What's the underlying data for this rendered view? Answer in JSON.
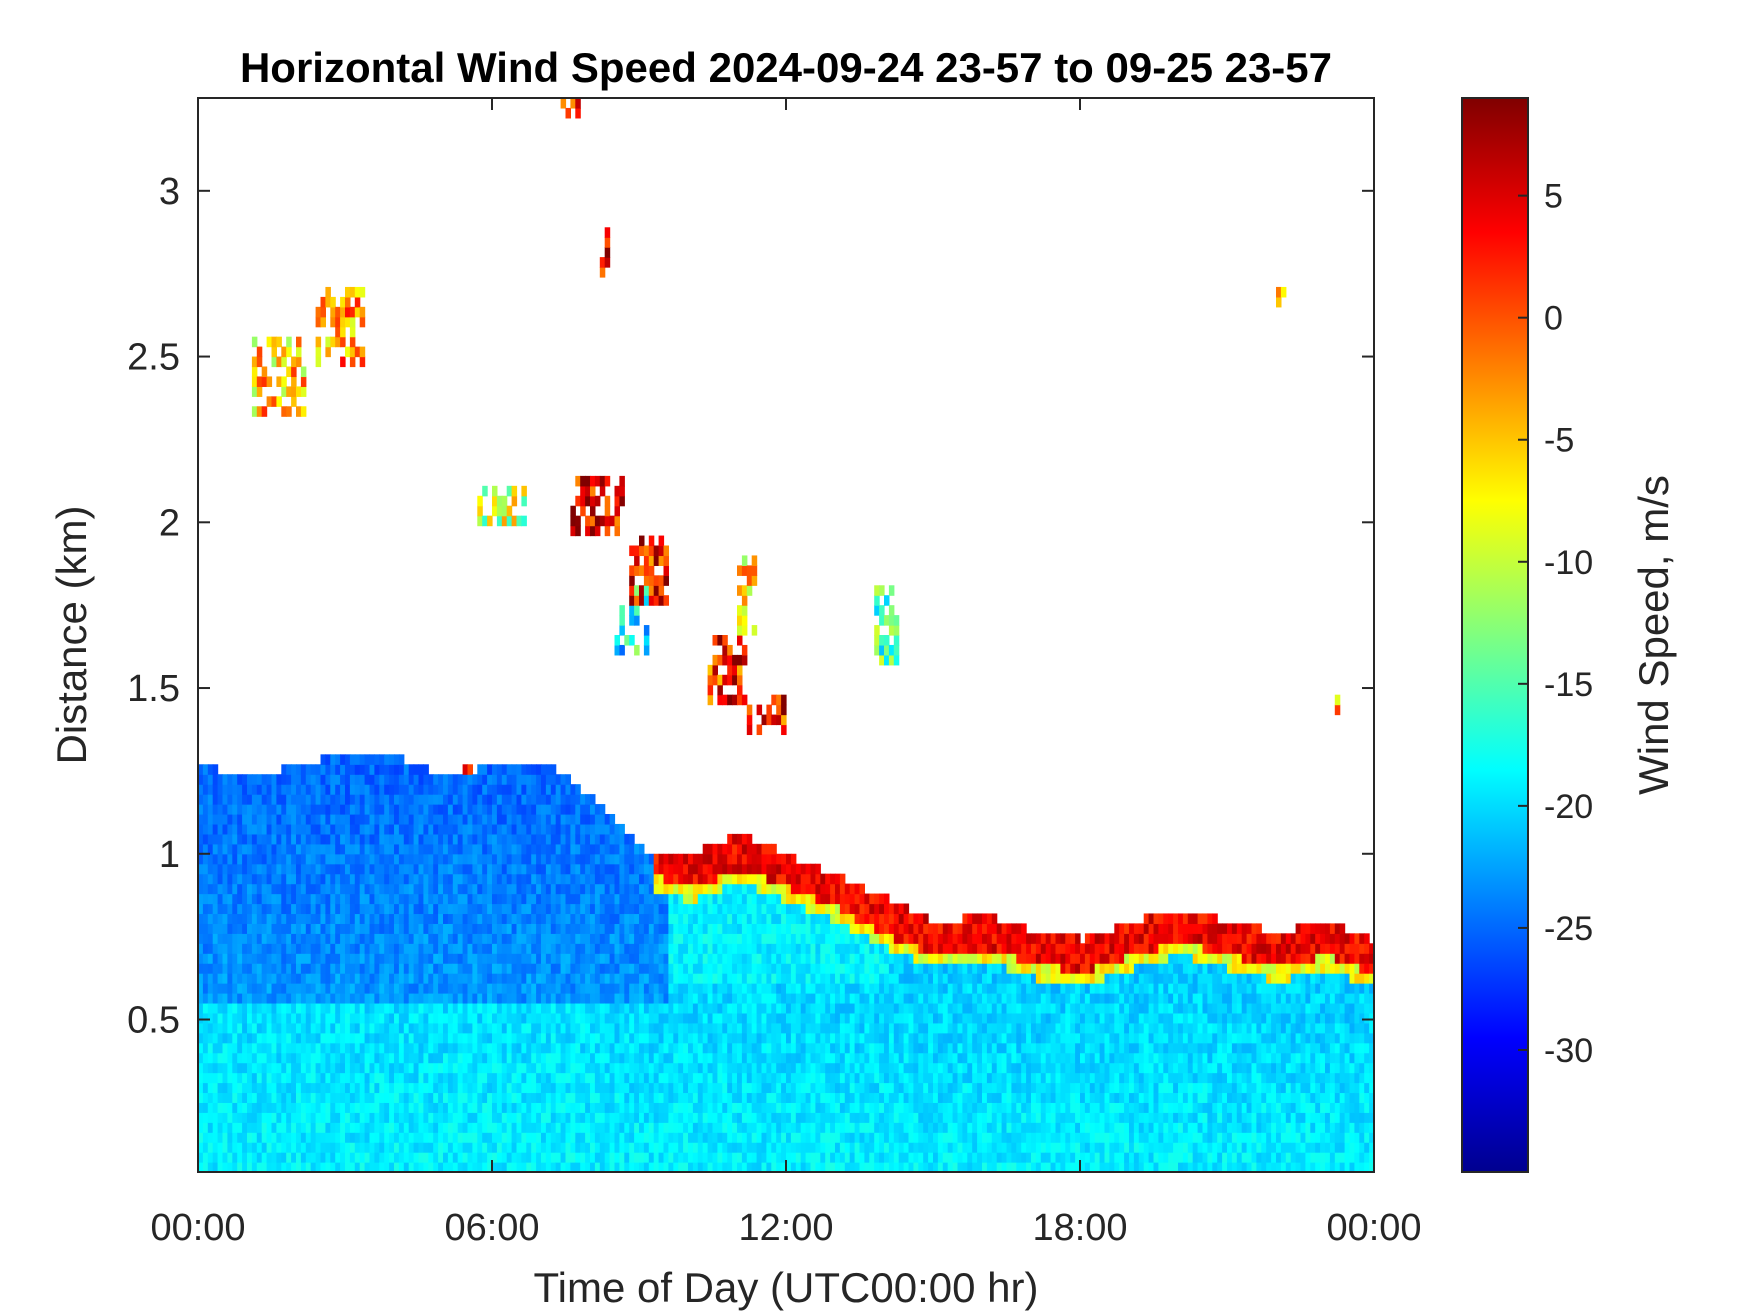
{
  "chart_data": {
    "type": "heatmap",
    "title": "Horizontal Wind Speed 2024-09-24 23-57 to 09-25 23-57",
    "xlabel": "Time of Day (UTC00:00 hr)",
    "ylabel": "Distance (km)",
    "x_unit": "hours",
    "xlim": [
      0,
      24
    ],
    "ylim": [
      0.04,
      3.28
    ],
    "xticks": [
      0,
      6,
      12,
      18,
      24
    ],
    "xtick_labels": [
      "00:00",
      "06:00",
      "12:00",
      "18:00",
      "00:00"
    ],
    "yticks": [
      0.5,
      1,
      1.5,
      2,
      2.5,
      3
    ],
    "ytick_labels": [
      "0.5",
      "1",
      "1.5",
      "2",
      "2.5",
      "3"
    ],
    "colormap": "jet",
    "colorbar": {
      "label": "Wind Speed, m/s",
      "clim": [
        -35,
        9
      ],
      "ticks": [
        -30,
        -25,
        -20,
        -15,
        -10,
        -5,
        0,
        5
      ],
      "tick_labels": [
        "-30",
        "-25",
        "-20",
        "-15",
        "-10",
        "-5",
        "0",
        "5"
      ]
    },
    "boundary_layer_top_km": [
      [
        0,
        1.25
      ],
      [
        1,
        1.22
      ],
      [
        2,
        1.25
      ],
      [
        3,
        1.3
      ],
      [
        4,
        1.28
      ],
      [
        5,
        1.22
      ],
      [
        6,
        1.25
      ],
      [
        7,
        1.27
      ],
      [
        8,
        1.15
      ],
      [
        9,
        1.0
      ],
      [
        10,
        0.98
      ],
      [
        11,
        1.05
      ],
      [
        12,
        0.98
      ],
      [
        13,
        0.92
      ],
      [
        14,
        0.85
      ],
      [
        15,
        0.78
      ],
      [
        16,
        0.8
      ],
      [
        17,
        0.75
      ],
      [
        18,
        0.73
      ],
      [
        19,
        0.78
      ],
      [
        20,
        0.82
      ],
      [
        21,
        0.78
      ],
      [
        22,
        0.75
      ],
      [
        23,
        0.78
      ],
      [
        24,
        0.72
      ]
    ],
    "shear_band_km": [
      [
        9.2,
        1.0
      ],
      [
        10,
        0.96
      ],
      [
        11,
        1.02
      ],
      [
        12,
        0.96
      ],
      [
        13,
        0.9
      ],
      [
        14,
        0.82
      ],
      [
        15,
        0.76
      ],
      [
        16,
        0.78
      ],
      [
        17,
        0.73
      ],
      [
        18,
        0.71
      ],
      [
        19,
        0.76
      ],
      [
        20,
        0.8
      ],
      [
        21,
        0.76
      ],
      [
        22,
        0.72
      ],
      [
        23,
        0.76
      ],
      [
        24,
        0.7
      ]
    ],
    "shear_band_speed": 4,
    "cloud_patches": [
      {
        "x": 1.0,
        "y": 2.3,
        "w": 1.2,
        "h": 0.25,
        "v": -5
      },
      {
        "x": 2.4,
        "y": 2.45,
        "w": 1.0,
        "h": 0.25,
        "v": -3
      },
      {
        "x": 7.2,
        "y": 3.2,
        "w": 0.5,
        "h": 0.15,
        "v": 2
      },
      {
        "x": 7.5,
        "y": 1.95,
        "w": 1.1,
        "h": 0.18,
        "v": 4
      },
      {
        "x": 8.7,
        "y": 1.75,
        "w": 0.8,
        "h": 0.2,
        "v": 3
      },
      {
        "x": 8.4,
        "y": 1.6,
        "w": 0.7,
        "h": 0.2,
        "v": -18
      },
      {
        "x": 10.3,
        "y": 1.45,
        "w": 0.8,
        "h": 0.2,
        "v": 2
      },
      {
        "x": 11.0,
        "y": 1.36,
        "w": 0.9,
        "h": 0.12,
        "v": 3
      },
      {
        "x": 10.9,
        "y": 1.65,
        "w": 0.4,
        "h": 0.25,
        "v": -6
      },
      {
        "x": 5.6,
        "y": 1.98,
        "w": 1.0,
        "h": 0.12,
        "v": -10
      },
      {
        "x": 13.7,
        "y": 1.55,
        "w": 0.5,
        "h": 0.25,
        "v": -16
      },
      {
        "x": 8.1,
        "y": 2.72,
        "w": 0.2,
        "h": 0.15,
        "v": 4
      },
      {
        "x": 23.1,
        "y": 1.4,
        "w": 0.2,
        "h": 0.08,
        "v": -3
      },
      {
        "x": 22.0,
        "y": 2.6,
        "w": 0.2,
        "h": 0.08,
        "v": -6
      },
      {
        "x": 5.3,
        "y": 1.15,
        "w": 0.7,
        "h": 0.12,
        "v": 4
      }
    ]
  }
}
